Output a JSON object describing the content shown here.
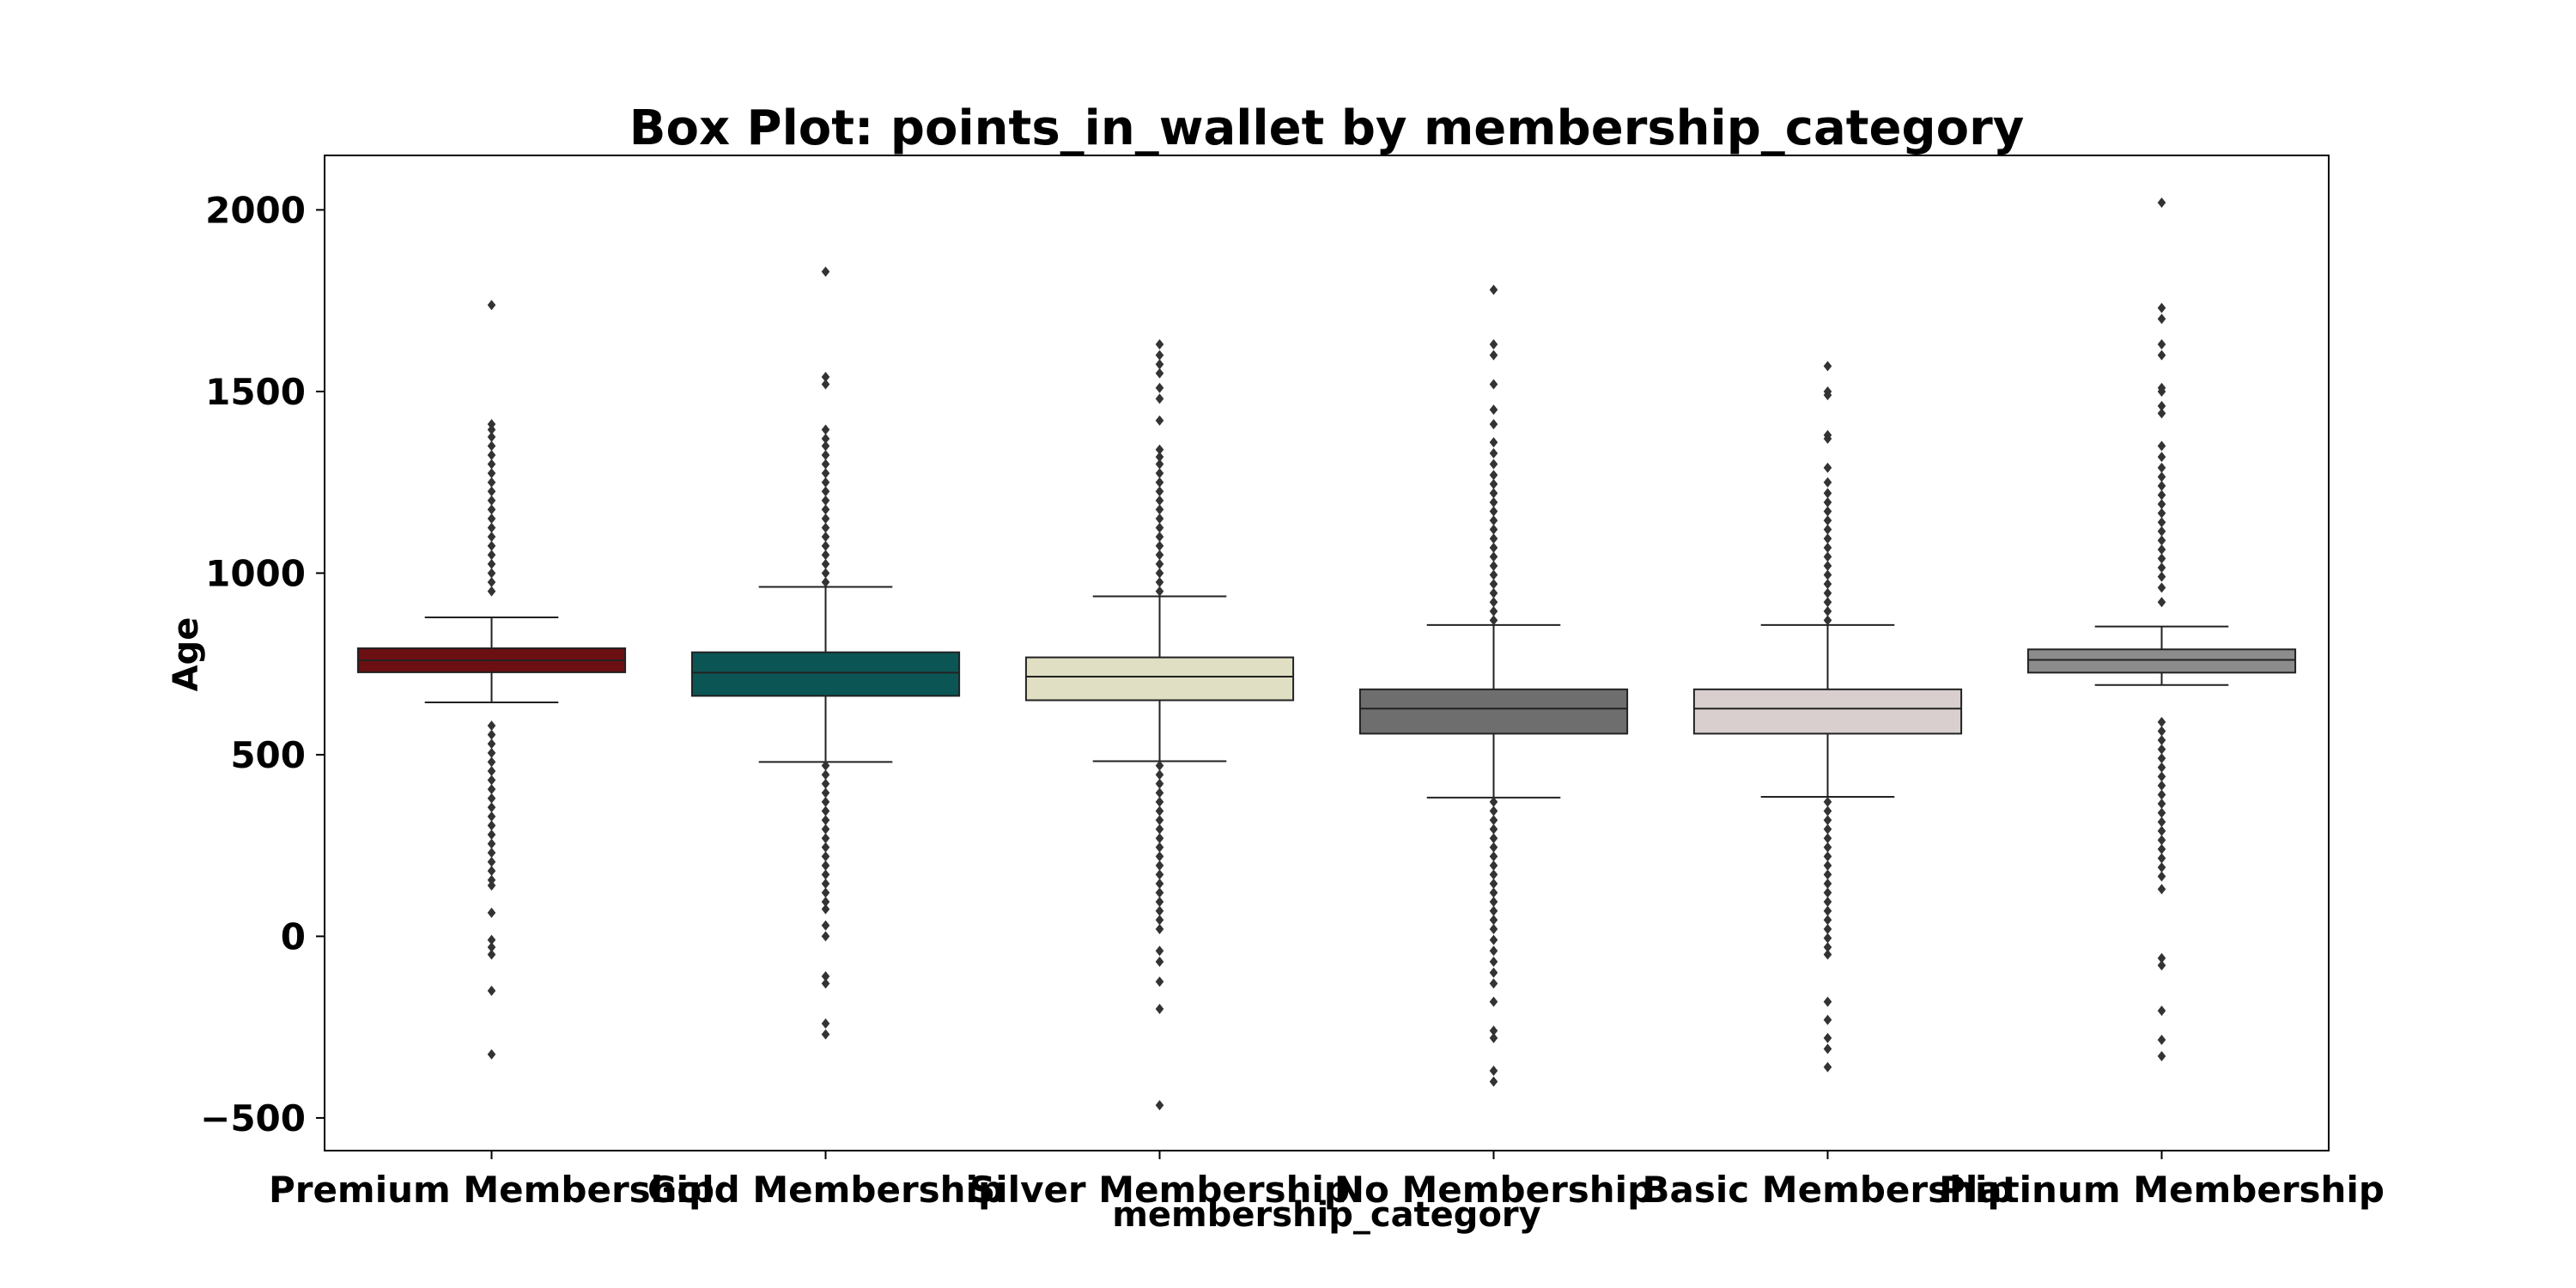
{
  "chart_data": {
    "type": "box",
    "title": "Box Plot: points_in_wallet by membership_category",
    "xlabel": "membership_category",
    "ylabel": "Age",
    "ylim": [
      -590,
      2150
    ],
    "yticks": [
      -500,
      0,
      500,
      1000,
      1500,
      2000
    ],
    "ytick_labels": [
      "−500",
      "0",
      "500",
      "1000",
      "1500",
      "2000"
    ],
    "grid": false,
    "legend": "none",
    "series": [
      {
        "category": "Premium Membership",
        "color": "#6b0f12",
        "q1": 727,
        "median": 760,
        "q3": 793,
        "whisker_low": 644,
        "whisker_high": 878,
        "outliers_low": [
          580,
          555,
          530,
          505,
          480,
          455,
          430,
          405,
          380,
          355,
          330,
          305,
          280,
          255,
          230,
          205,
          180,
          155,
          140,
          65,
          -10,
          -30,
          -50,
          -150,
          -325
        ],
        "outliers_high": [
          950,
          975,
          1000,
          1025,
          1050,
          1075,
          1100,
          1125,
          1150,
          1175,
          1200,
          1225,
          1250,
          1275,
          1300,
          1325,
          1350,
          1375,
          1395,
          1410,
          1738
        ]
      },
      {
        "category": "Gold Membership",
        "color": "#0b5554",
        "q1": 662,
        "median": 726,
        "q3": 782,
        "whisker_low": 480,
        "whisker_high": 962,
        "outliers_low": [
          470,
          445,
          420,
          395,
          370,
          345,
          320,
          295,
          270,
          245,
          220,
          195,
          170,
          145,
          120,
          95,
          75,
          30,
          0,
          -110,
          -130,
          -240,
          -270
        ],
        "outliers_high": [
          975,
          1000,
          1025,
          1050,
          1075,
          1100,
          1125,
          1150,
          1175,
          1200,
          1225,
          1250,
          1275,
          1300,
          1325,
          1350,
          1370,
          1395,
          1520,
          1540,
          1830
        ]
      },
      {
        "category": "Silver Membership",
        "color": "#e0dfc3",
        "q1": 650,
        "median": 715,
        "q3": 768,
        "whisker_low": 482,
        "whisker_high": 936,
        "outliers_low": [
          470,
          445,
          420,
          395,
          370,
          345,
          320,
          295,
          270,
          245,
          220,
          195,
          170,
          145,
          120,
          95,
          70,
          45,
          20,
          -40,
          -70,
          -125,
          -200,
          -465
        ],
        "outliers_high": [
          950,
          975,
          1000,
          1025,
          1050,
          1075,
          1100,
          1125,
          1150,
          1175,
          1200,
          1225,
          1250,
          1275,
          1300,
          1320,
          1340,
          1420,
          1480,
          1510,
          1550,
          1575,
          1600,
          1630
        ]
      },
      {
        "category": "No Membership",
        "color": "#6e6e6e",
        "q1": 558,
        "median": 627,
        "q3": 680,
        "whisker_low": 382,
        "whisker_high": 857,
        "outliers_low": [
          370,
          345,
          320,
          295,
          270,
          245,
          220,
          195,
          170,
          145,
          120,
          95,
          70,
          45,
          20,
          -10,
          -40,
          -70,
          -100,
          -130,
          -180,
          -260,
          -280,
          -370,
          -400
        ],
        "outliers_high": [
          870,
          895,
          920,
          945,
          970,
          995,
          1020,
          1045,
          1070,
          1095,
          1120,
          1145,
          1170,
          1195,
          1220,
          1245,
          1270,
          1300,
          1330,
          1360,
          1410,
          1450,
          1520,
          1600,
          1630,
          1780
        ]
      },
      {
        "category": "Basic Membership",
        "color": "#d9cfcf",
        "q1": 558,
        "median": 627,
        "q3": 680,
        "whisker_low": 384,
        "whisker_high": 857,
        "outliers_low": [
          370,
          345,
          320,
          295,
          270,
          245,
          220,
          195,
          170,
          145,
          120,
          95,
          70,
          45,
          20,
          -5,
          -30,
          -50,
          -180,
          -230,
          -280,
          -310,
          -360
        ],
        "outliers_high": [
          870,
          895,
          920,
          945,
          970,
          995,
          1020,
          1045,
          1070,
          1095,
          1120,
          1145,
          1170,
          1195,
          1220,
          1250,
          1290,
          1370,
          1380,
          1490,
          1500,
          1570
        ]
      },
      {
        "category": "Platinum Membership",
        "color": "#8c8c8c",
        "q1": 726,
        "median": 761,
        "q3": 790,
        "whisker_low": 692,
        "whisker_high": 853,
        "outliers_low": [
          590,
          565,
          540,
          515,
          490,
          465,
          440,
          415,
          390,
          365,
          340,
          315,
          290,
          265,
          240,
          215,
          190,
          165,
          130,
          -60,
          -80,
          -205,
          -285,
          -330
        ],
        "outliers_high": [
          920,
          960,
          990,
          1015,
          1040,
          1065,
          1090,
          1115,
          1140,
          1165,
          1190,
          1215,
          1240,
          1265,
          1290,
          1320,
          1350,
          1440,
          1460,
          1500,
          1510,
          1600,
          1630,
          1700,
          1730,
          2020
        ]
      }
    ]
  }
}
